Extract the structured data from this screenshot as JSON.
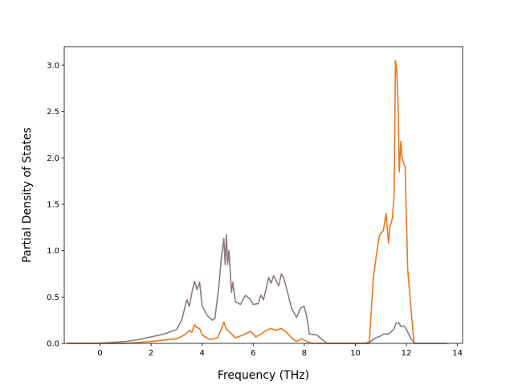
{
  "chart_data": {
    "type": "line",
    "title": "",
    "xlabel": "Frequency (THz)",
    "ylabel": "Partial Density of States",
    "xlim": [
      -1.4,
      14.2
    ],
    "ylim": [
      0,
      3.2
    ],
    "xticks": [
      0,
      2,
      4,
      6,
      8,
      10,
      12,
      14
    ],
    "yticks": [
      0.0,
      0.5,
      1.0,
      1.5,
      2.0,
      2.5,
      3.0
    ],
    "xtick_labels": [
      "0",
      "2",
      "4",
      "6",
      "8",
      "10",
      "12",
      "14"
    ],
    "ytick_labels": [
      "0.0",
      "0.5",
      "1.0",
      "1.5",
      "2.0",
      "2.5",
      "3.0"
    ],
    "grid": false,
    "legend": false,
    "series": [
      {
        "color": "#8c7b7b",
        "points": [
          [
            -1.3,
            0
          ],
          [
            -0.2,
            0
          ],
          [
            0.5,
            0.01
          ],
          [
            1.0,
            0.02
          ],
          [
            1.5,
            0.04
          ],
          [
            2.0,
            0.07
          ],
          [
            2.5,
            0.1
          ],
          [
            3.0,
            0.15
          ],
          [
            3.2,
            0.25
          ],
          [
            3.4,
            0.47
          ],
          [
            3.5,
            0.4
          ],
          [
            3.6,
            0.55
          ],
          [
            3.7,
            0.67
          ],
          [
            3.8,
            0.58
          ],
          [
            3.9,
            0.66
          ],
          [
            4.0,
            0.4
          ],
          [
            4.2,
            0.3
          ],
          [
            4.4,
            0.25
          ],
          [
            4.5,
            0.27
          ],
          [
            4.65,
            0.6
          ],
          [
            4.75,
            0.92
          ],
          [
            4.85,
            1.13
          ],
          [
            4.9,
            0.85
          ],
          [
            4.95,
            1.17
          ],
          [
            5.0,
            0.85
          ],
          [
            5.05,
            1.0
          ],
          [
            5.15,
            0.55
          ],
          [
            5.2,
            0.66
          ],
          [
            5.3,
            0.45
          ],
          [
            5.5,
            0.42
          ],
          [
            5.7,
            0.52
          ],
          [
            5.9,
            0.47
          ],
          [
            6.0,
            0.42
          ],
          [
            6.2,
            0.43
          ],
          [
            6.3,
            0.52
          ],
          [
            6.4,
            0.47
          ],
          [
            6.5,
            0.58
          ],
          [
            6.6,
            0.71
          ],
          [
            6.7,
            0.65
          ],
          [
            6.8,
            0.73
          ],
          [
            7.0,
            0.62
          ],
          [
            7.1,
            0.75
          ],
          [
            7.2,
            0.7
          ],
          [
            7.3,
            0.6
          ],
          [
            7.5,
            0.38
          ],
          [
            7.7,
            0.28
          ],
          [
            7.85,
            0.38
          ],
          [
            8.0,
            0.4
          ],
          [
            8.1,
            0.28
          ],
          [
            8.2,
            0.1
          ],
          [
            8.5,
            0.09
          ],
          [
            8.7,
            0.04
          ],
          [
            8.9,
            0
          ],
          [
            10.5,
            0
          ],
          [
            10.8,
            0.06
          ],
          [
            11.0,
            0.08
          ],
          [
            11.1,
            0.1
          ],
          [
            11.3,
            0.1
          ],
          [
            11.5,
            0.15
          ],
          [
            11.6,
            0.22
          ],
          [
            11.7,
            0.22
          ],
          [
            11.8,
            0.18
          ],
          [
            11.9,
            0.19
          ],
          [
            12.0,
            0.15
          ],
          [
            12.2,
            0.04
          ],
          [
            12.35,
            0
          ],
          [
            13.6,
            0
          ]
        ]
      },
      {
        "color": "#e8781e",
        "points": [
          [
            -1.3,
            0
          ],
          [
            1.0,
            0
          ],
          [
            2.0,
            0.02
          ],
          [
            3.0,
            0.05
          ],
          [
            3.3,
            0.09
          ],
          [
            3.5,
            0.14
          ],
          [
            3.6,
            0.12
          ],
          [
            3.7,
            0.2
          ],
          [
            3.8,
            0.17
          ],
          [
            3.9,
            0.16
          ],
          [
            4.0,
            0.09
          ],
          [
            4.3,
            0.04
          ],
          [
            4.6,
            0.06
          ],
          [
            4.75,
            0.15
          ],
          [
            4.85,
            0.23
          ],
          [
            4.95,
            0.15
          ],
          [
            5.1,
            0.12
          ],
          [
            5.3,
            0.06
          ],
          [
            5.6,
            0.09
          ],
          [
            5.9,
            0.13
          ],
          [
            6.1,
            0.07
          ],
          [
            6.3,
            0.1
          ],
          [
            6.5,
            0.14
          ],
          [
            6.7,
            0.16
          ],
          [
            6.9,
            0.14
          ],
          [
            7.1,
            0.16
          ],
          [
            7.3,
            0.12
          ],
          [
            7.5,
            0.06
          ],
          [
            7.7,
            0.02
          ],
          [
            7.9,
            0.05
          ],
          [
            8.1,
            0.02
          ],
          [
            8.3,
            0
          ],
          [
            10.4,
            0
          ],
          [
            10.55,
            0.02
          ],
          [
            10.7,
            0.7
          ],
          [
            10.85,
            1.0
          ],
          [
            10.95,
            1.17
          ],
          [
            11.1,
            1.22
          ],
          [
            11.2,
            1.4
          ],
          [
            11.3,
            1.08
          ],
          [
            11.35,
            1.25
          ],
          [
            11.45,
            1.35
          ],
          [
            11.52,
            1.6
          ],
          [
            11.57,
            3.05
          ],
          [
            11.62,
            2.95
          ],
          [
            11.67,
            2.6
          ],
          [
            11.72,
            1.85
          ],
          [
            11.78,
            2.18
          ],
          [
            11.83,
            2.0
          ],
          [
            11.95,
            1.9
          ],
          [
            12.05,
            0.8
          ],
          [
            12.2,
            0.3
          ],
          [
            12.3,
            0
          ]
        ]
      }
    ]
  }
}
